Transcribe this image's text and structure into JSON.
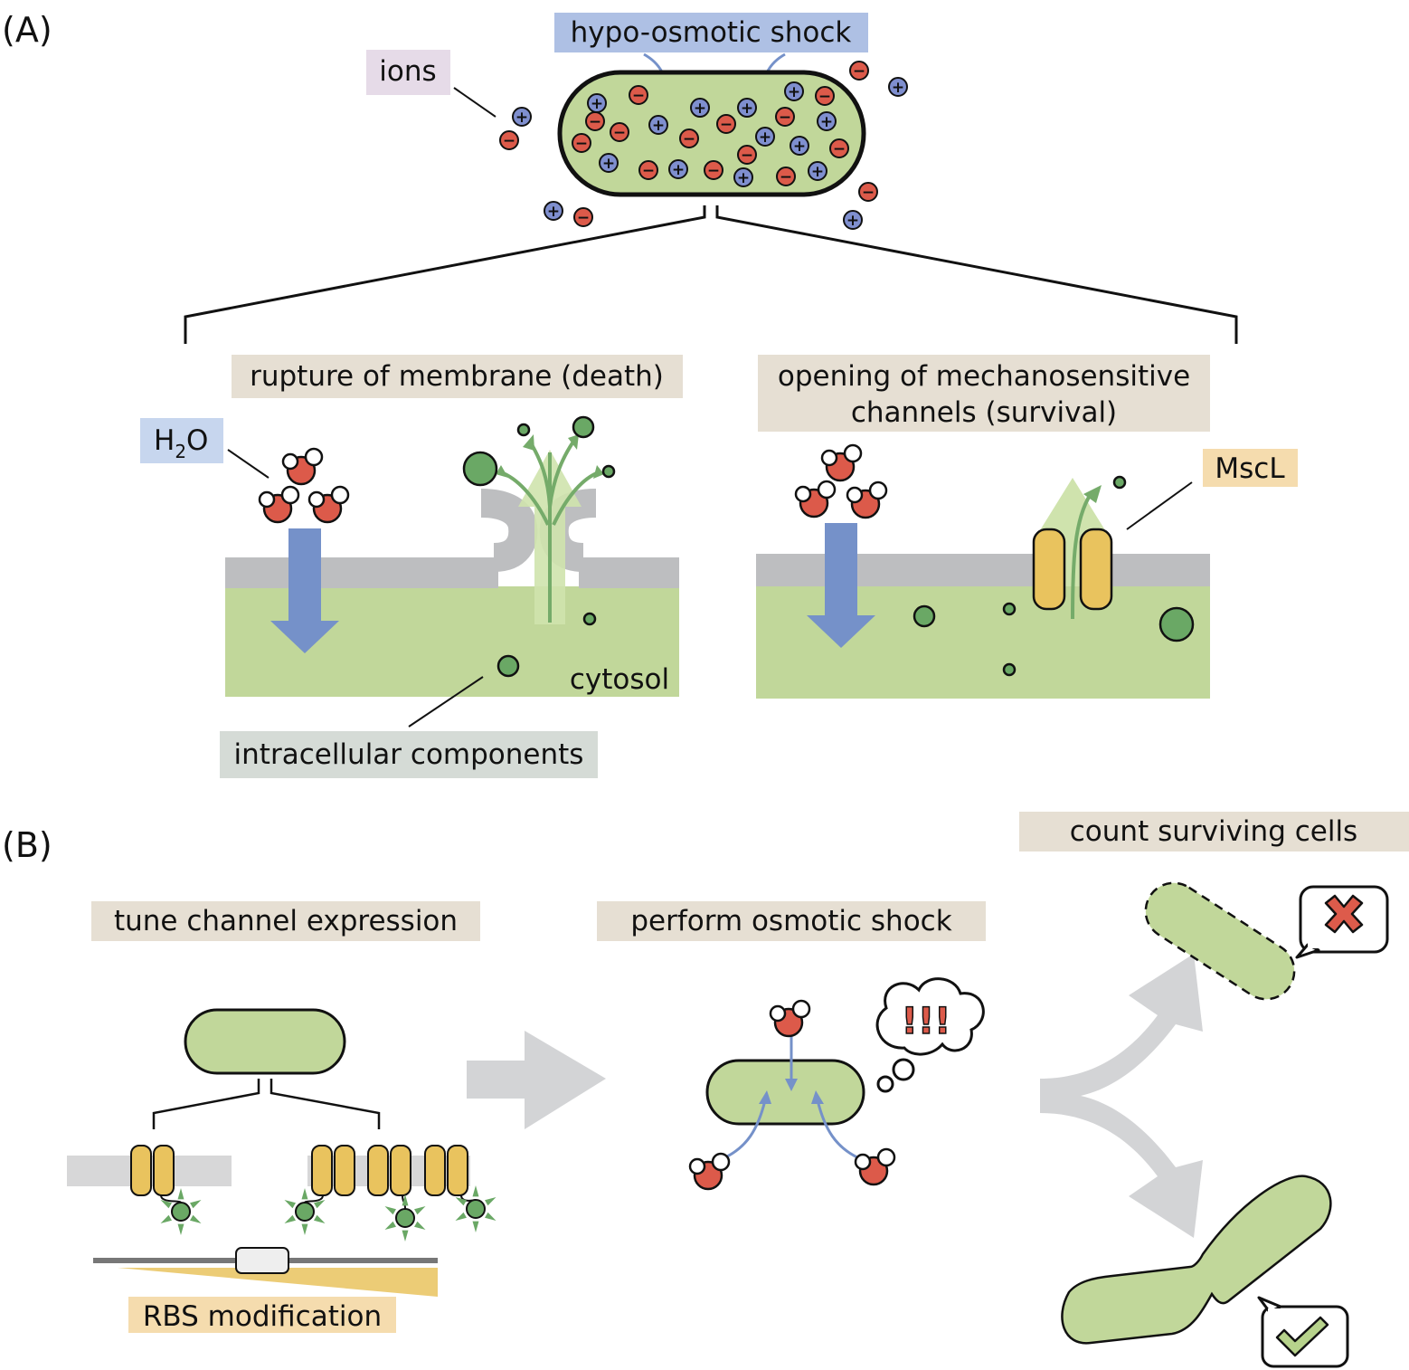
{
  "panels": {
    "a": "(A)",
    "b": "(B)"
  },
  "labels": {
    "hypo_osmotic_shock": "hypo-osmotic shock",
    "ions": "ions",
    "rupture": "rupture of membrane (death)",
    "opening_line1": "opening of mechanosensitive",
    "opening_line2": "channels (survival)",
    "h2o_h": "H",
    "h2o_sub": "2",
    "h2o_o": "O",
    "mscl": "MscL",
    "cytosol": "cytosol",
    "intracellular": "intracellular components",
    "tune": "tune channel expression",
    "perform": "perform osmotic shock",
    "count": "count surviving cells",
    "rbs": "RBS modification",
    "exclaim": "!!!"
  },
  "colors": {
    "cell_green": "#c1d79a",
    "membrane_gray": "#bdbec0",
    "ion_negative": "#dc5a4a",
    "ion_positive": "#7f8fcf",
    "water_arrow": "#7591c9",
    "channel_yellow": "#e9c35e",
    "component_green": "#6aa865",
    "flow_green": "#75ab6a",
    "label_hypo": "#aec0e4",
    "label_ions": "#e6dbe8",
    "label_tan": "#e6dfd3",
    "label_h2o": "#c7d6ee",
    "label_mscl": "#f5dcae",
    "label_intra": "#d5dbd6",
    "label_rbs": "#f5dcae",
    "cross_red": "#dd5b4b",
    "check_green": "#b7d38c"
  },
  "ions_symbols": {
    "positive": "+",
    "negative": "−"
  },
  "icons": [
    "water-molecule-icon",
    "ion-plus-icon",
    "ion-minus-icon",
    "cross-icon",
    "check-icon",
    "thought-bubble-icon",
    "gene-rbs-icon"
  ]
}
